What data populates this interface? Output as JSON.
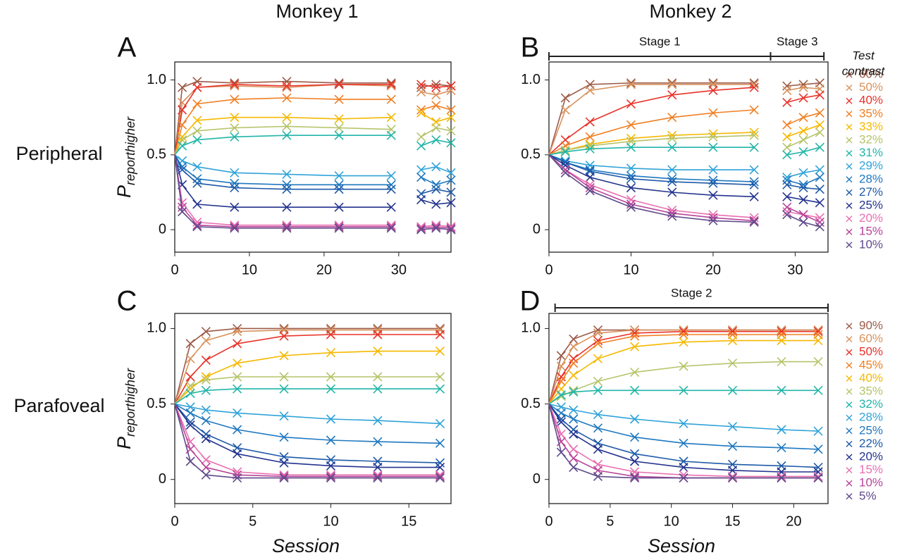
{
  "column_titles": [
    "Monkey 1",
    "Monkey 2"
  ],
  "row_titles": [
    "Peripheral",
    "Parafoveal"
  ],
  "chart_data": [
    {
      "type": "scatter",
      "panel_label": "A",
      "ylabel": "P",
      "ylabel_subscript": "reporthigher",
      "xlim": [
        0,
        37
      ],
      "ylim": [
        -0.15,
        1.12
      ],
      "xticks": [
        0,
        10,
        20,
        30
      ],
      "yticks": [
        0,
        0.5,
        {
          "value": 1,
          "label": "1.0"
        }
      ],
      "x": [
        0,
        1,
        3,
        8,
        15,
        22,
        29,
        31,
        33,
        35,
        37
      ],
      "series": [
        {
          "color": "#9c5a48",
          "values": [
            0.5,
            0.95,
            0.99,
            0.98,
            0.99,
            0.98,
            0.98,
            null,
            0.95,
            0.97,
            0.96
          ]
        },
        {
          "color": "#d8935e",
          "values": [
            0.5,
            0.85,
            0.95,
            0.96,
            0.95,
            0.97,
            0.96,
            null,
            0.92,
            0.9,
            0.93
          ]
        },
        {
          "color": "#e8322a",
          "values": [
            0.5,
            0.8,
            0.95,
            0.97,
            0.96,
            0.97,
            0.97,
            null,
            0.97,
            0.95,
            0.96
          ]
        },
        {
          "color": "#f07f23",
          "values": [
            0.5,
            0.7,
            0.84,
            0.87,
            0.88,
            0.87,
            0.87,
            null,
            0.8,
            0.83,
            0.8
          ]
        },
        {
          "color": "#f5b800",
          "values": [
            0.5,
            0.62,
            0.73,
            0.75,
            0.75,
            0.74,
            0.75,
            null,
            0.78,
            0.72,
            0.75
          ]
        },
        {
          "color": "#b5c46a",
          "values": [
            0.5,
            0.6,
            0.66,
            0.68,
            0.69,
            0.68,
            0.67,
            null,
            0.62,
            0.68,
            0.66
          ]
        },
        {
          "color": "#22b5a8",
          "values": [
            0.5,
            0.56,
            0.6,
            0.62,
            0.63,
            0.63,
            0.63,
            null,
            0.56,
            0.6,
            0.58
          ]
        },
        {
          "color": "#2fa3d8",
          "values": [
            0.5,
            0.46,
            0.42,
            0.38,
            0.37,
            0.36,
            0.36,
            null,
            0.4,
            0.42,
            0.38
          ]
        },
        {
          "color": "#1f78c0",
          "values": [
            0.5,
            0.42,
            0.34,
            0.31,
            0.3,
            0.3,
            0.3,
            null,
            0.35,
            0.3,
            0.33
          ]
        },
        {
          "color": "#1e5aa8",
          "values": [
            0.5,
            0.4,
            0.31,
            0.28,
            0.27,
            0.27,
            0.27,
            null,
            0.24,
            0.27,
            0.25
          ]
        },
        {
          "color": "#23338e",
          "values": [
            0.5,
            0.3,
            0.17,
            0.15,
            0.15,
            0.15,
            0.15,
            null,
            0.2,
            0.17,
            0.18
          ]
        },
        {
          "color": "#ea6fb0",
          "values": [
            0.5,
            0.18,
            0.05,
            0.03,
            0.03,
            0.03,
            0.03,
            null,
            0.02,
            0.03,
            0.02
          ]
        },
        {
          "color": "#b8449a",
          "values": [
            0.5,
            0.15,
            0.03,
            0.02,
            0.02,
            0.02,
            0.02,
            null,
            0.01,
            0.02,
            0.01
          ]
        },
        {
          "color": "#5e4a8a",
          "values": [
            0.5,
            0.12,
            0.02,
            0.01,
            0.01,
            0.01,
            0.01,
            null,
            0,
            0.01,
            0
          ]
        }
      ]
    },
    {
      "type": "scatter",
      "panel_label": "B",
      "xlim": [
        0,
        34
      ],
      "ylim": [
        -0.15,
        1.12
      ],
      "xticks": [
        0,
        10,
        20,
        30
      ],
      "yticks": [
        0,
        0.5,
        {
          "value": 1,
          "label": "1.0"
        }
      ],
      "stages": [
        {
          "label": "Stage 1",
          "span": [
            0,
            27
          ]
        },
        {
          "label": "Stage 3",
          "span": [
            27,
            33.5
          ]
        }
      ],
      "legend": "right",
      "legend_title": [
        "Test",
        "contrast"
      ],
      "x": [
        0,
        2,
        5,
        10,
        15,
        20,
        25,
        27,
        29,
        31,
        33
      ],
      "series": [
        {
          "name": "60%",
          "color": "#9c5a48",
          "values": [
            0.5,
            0.88,
            0.97,
            0.98,
            0.98,
            0.98,
            0.98,
            null,
            0.96,
            0.97,
            0.98
          ]
        },
        {
          "name": "50%",
          "color": "#d8935e",
          "values": [
            0.5,
            0.8,
            0.93,
            0.97,
            0.97,
            0.97,
            0.97,
            null,
            0.93,
            0.95,
            0.94
          ]
        },
        {
          "name": "40%",
          "color": "#e8322a",
          "values": [
            0.5,
            0.6,
            0.72,
            0.84,
            0.9,
            0.93,
            0.95,
            null,
            0.85,
            0.88,
            0.9
          ]
        },
        {
          "name": "35%",
          "color": "#f07f23",
          "values": [
            0.5,
            0.56,
            0.62,
            0.7,
            0.75,
            0.78,
            0.8,
            null,
            0.7,
            0.75,
            0.78
          ]
        },
        {
          "name": "33%",
          "color": "#f5b800",
          "values": [
            0.5,
            0.53,
            0.57,
            0.61,
            0.63,
            0.64,
            0.65,
            null,
            0.62,
            0.66,
            0.7
          ]
        },
        {
          "name": "32%",
          "color": "#b5c46a",
          "values": [
            0.5,
            0.53,
            0.56,
            0.59,
            0.61,
            0.62,
            0.63,
            null,
            0.55,
            0.6,
            0.65
          ]
        },
        {
          "name": "31%",
          "color": "#22b5a8",
          "values": [
            0.5,
            0.52,
            0.54,
            0.55,
            0.55,
            0.55,
            0.55,
            null,
            0.5,
            0.52,
            0.55
          ]
        },
        {
          "name": "29%",
          "color": "#2fa3d8",
          "values": [
            0.5,
            0.46,
            0.43,
            0.41,
            0.4,
            0.4,
            0.4,
            null,
            0.35,
            0.38,
            0.4
          ]
        },
        {
          "name": "28%",
          "color": "#1f78c0",
          "values": [
            0.5,
            0.45,
            0.4,
            0.36,
            0.34,
            0.33,
            0.32,
            null,
            0.33,
            0.3,
            0.35
          ]
        },
        {
          "name": "27%",
          "color": "#1e5aa8",
          "values": [
            0.5,
            0.45,
            0.39,
            0.34,
            0.32,
            0.31,
            0.3,
            null,
            0.3,
            0.28,
            0.27
          ]
        },
        {
          "name": "25%",
          "color": "#23338e",
          "values": [
            0.5,
            0.43,
            0.35,
            0.28,
            0.25,
            0.23,
            0.22,
            null,
            0.22,
            0.2,
            0.18
          ]
        },
        {
          "name": "20%",
          "color": "#ea6fb0",
          "values": [
            0.5,
            0.4,
            0.3,
            0.2,
            0.13,
            0.1,
            0.08,
            null,
            0.12,
            0.1,
            0.08
          ]
        },
        {
          "name": "15%",
          "color": "#b8449a",
          "values": [
            0.5,
            0.4,
            0.28,
            0.17,
            0.11,
            0.08,
            0.06,
            null,
            0.15,
            0.1,
            0.05
          ]
        },
        {
          "name": "10%",
          "color": "#5e4a8a",
          "values": [
            0.5,
            0.38,
            0.26,
            0.15,
            0.09,
            0.06,
            0.05,
            null,
            0.1,
            0.05,
            0.02
          ]
        }
      ]
    },
    {
      "type": "scatter",
      "panel_label": "C",
      "ylabel": "P",
      "ylabel_subscript": "reporthigher",
      "xlabel": "Session",
      "xlim": [
        0,
        17.7
      ],
      "ylim": [
        -0.16,
        1.1
      ],
      "xticks": [
        0,
        5,
        10,
        15
      ],
      "yticks": [
        0,
        0.5,
        {
          "value": 1,
          "label": "1.0"
        }
      ],
      "x": [
        0,
        1,
        2,
        4,
        7,
        10,
        13,
        17
      ],
      "series": [
        {
          "color": "#9c5a48",
          "values": [
            0.5,
            0.9,
            0.98,
            1,
            1,
            1,
            1,
            1
          ]
        },
        {
          "color": "#d8935e",
          "values": [
            0.5,
            0.8,
            0.92,
            0.98,
            0.99,
            0.99,
            0.99,
            0.99
          ]
        },
        {
          "color": "#e8322a",
          "values": [
            0.5,
            0.68,
            0.79,
            0.9,
            0.95,
            0.96,
            0.96,
            0.96
          ]
        },
        {
          "color": "#f5b800",
          "values": [
            0.5,
            0.6,
            0.68,
            0.77,
            0.82,
            0.84,
            0.85,
            0.85
          ]
        },
        {
          "color": "#b5c46a",
          "values": [
            0.5,
            0.62,
            0.66,
            0.68,
            0.68,
            0.68,
            0.68,
            0.68
          ]
        },
        {
          "color": "#22b5a8",
          "values": [
            0.5,
            0.57,
            0.59,
            0.6,
            0.6,
            0.6,
            0.6,
            0.6
          ]
        },
        {
          "color": "#2fa3d8",
          "values": [
            0.5,
            0.48,
            0.46,
            0.44,
            0.42,
            0.4,
            0.39,
            0.37
          ]
        },
        {
          "color": "#1f78c0",
          "values": [
            0.5,
            0.44,
            0.39,
            0.33,
            0.28,
            0.26,
            0.25,
            0.24
          ]
        },
        {
          "color": "#1e5aa8",
          "values": [
            0.5,
            0.38,
            0.3,
            0.21,
            0.15,
            0.13,
            0.12,
            0.11
          ]
        },
        {
          "color": "#23338e",
          "values": [
            0.5,
            0.36,
            0.27,
            0.17,
            0.11,
            0.09,
            0.08,
            0.08
          ]
        },
        {
          "color": "#ea6fb0",
          "values": [
            0.5,
            0.25,
            0.13,
            0.05,
            0.03,
            0.03,
            0.03,
            0.03
          ]
        },
        {
          "color": "#b8449a",
          "values": [
            0.5,
            0.2,
            0.08,
            0.03,
            0.02,
            0.02,
            0.02,
            0.02
          ]
        },
        {
          "color": "#5e4a8a",
          "values": [
            0.5,
            0.12,
            0.03,
            0.01,
            0.01,
            0.01,
            0.01,
            0.01
          ]
        }
      ]
    },
    {
      "type": "scatter",
      "panel_label": "D",
      "xlabel": "Session",
      "xlim": [
        0,
        22.8
      ],
      "ylim": [
        -0.16,
        1.1
      ],
      "xticks": [
        0,
        5,
        10,
        15,
        20
      ],
      "yticks": [
        0,
        0.5,
        {
          "value": 1,
          "label": "1.0"
        }
      ],
      "stages": [
        {
          "label": "Stage 2",
          "span": [
            0.5,
            22.8
          ]
        }
      ],
      "legend": "right",
      "x": [
        0,
        1,
        2,
        4,
        7,
        11,
        15,
        19,
        22
      ],
      "series": [
        {
          "name": "90%",
          "color": "#9c5a48",
          "values": [
            0.5,
            0.82,
            0.93,
            0.99,
            0.99,
            0.99,
            0.99,
            0.99,
            0.99
          ]
        },
        {
          "name": "60%",
          "color": "#d8935e",
          "values": [
            0.5,
            0.75,
            0.88,
            0.97,
            0.99,
            0.99,
            0.99,
            0.99,
            0.99
          ]
        },
        {
          "name": "50%",
          "color": "#e8322a",
          "values": [
            0.5,
            0.68,
            0.8,
            0.92,
            0.97,
            0.98,
            0.98,
            0.98,
            0.98
          ]
        },
        {
          "name": "45%",
          "color": "#f07f23",
          "values": [
            0.5,
            0.65,
            0.77,
            0.9,
            0.95,
            0.96,
            0.96,
            0.96,
            0.96
          ]
        },
        {
          "name": "40%",
          "color": "#f5b800",
          "values": [
            0.5,
            0.6,
            0.69,
            0.8,
            0.88,
            0.91,
            0.92,
            0.92,
            0.92
          ]
        },
        {
          "name": "35%",
          "color": "#b5c46a",
          "values": [
            0.5,
            0.55,
            0.59,
            0.65,
            0.71,
            0.75,
            0.77,
            0.78,
            0.78
          ]
        },
        {
          "name": "32%",
          "color": "#22b5a8",
          "values": [
            0.5,
            0.56,
            0.58,
            0.59,
            0.59,
            0.59,
            0.59,
            0.59,
            0.59
          ]
        },
        {
          "name": "28%",
          "color": "#2fa3d8",
          "values": [
            0.5,
            0.48,
            0.46,
            0.43,
            0.4,
            0.37,
            0.35,
            0.33,
            0.32
          ]
        },
        {
          "name": "25%",
          "color": "#1f78c0",
          "values": [
            0.5,
            0.44,
            0.4,
            0.34,
            0.28,
            0.24,
            0.22,
            0.21,
            0.2
          ]
        },
        {
          "name": "22%",
          "color": "#1e5aa8",
          "values": [
            0.5,
            0.4,
            0.33,
            0.24,
            0.17,
            0.12,
            0.1,
            0.09,
            0.08
          ]
        },
        {
          "name": "20%",
          "color": "#23338e",
          "values": [
            0.5,
            0.38,
            0.3,
            0.2,
            0.12,
            0.08,
            0.06,
            0.05,
            0.05
          ]
        },
        {
          "name": "15%",
          "color": "#ea6fb0",
          "values": [
            0.5,
            0.3,
            0.2,
            0.1,
            0.05,
            0.03,
            0.02,
            0.02,
            0.02
          ]
        },
        {
          "name": "10%",
          "color": "#b8449a",
          "values": [
            0.5,
            0.25,
            0.14,
            0.06,
            0.02,
            0.01,
            0.01,
            0.01,
            0.01
          ]
        },
        {
          "name": "5%",
          "color": "#5e4a8a",
          "values": [
            0.5,
            0.18,
            0.08,
            0.02,
            0.01,
            0.01,
            0.01,
            0.01,
            0.01
          ]
        }
      ]
    }
  ]
}
